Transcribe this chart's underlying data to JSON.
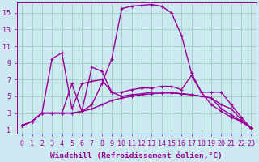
{
  "background_color": "#cce8f0",
  "grid_color": "#a0ccc0",
  "line_color": "#990099",
  "markersize": 2.8,
  "linewidth": 1.0,
  "xlabel": "Windchill (Refroidissement éolien,°C)",
  "xlabel_fontsize": 6.8,
  "tick_fontsize": 6.0,
  "xlim": [
    -0.5,
    23.5
  ],
  "ylim": [
    0.5,
    16.2
  ],
  "xticks": [
    0,
    1,
    2,
    3,
    4,
    5,
    6,
    7,
    8,
    9,
    10,
    11,
    12,
    13,
    14,
    15,
    16,
    17,
    18,
    19,
    20,
    21,
    22,
    23
  ],
  "yticks": [
    1,
    3,
    5,
    7,
    9,
    11,
    13,
    15
  ],
  "series": [
    [
      1.5,
      2.0,
      3.0,
      3.0,
      3.0,
      3.0,
      3.2,
      3.5,
      4.0,
      4.5,
      4.8,
      5.0,
      5.2,
      5.3,
      5.4,
      5.4,
      5.3,
      5.2,
      5.0,
      4.8,
      4.0,
      3.5,
      2.2,
      1.2
    ],
    [
      1.5,
      2.0,
      3.0,
      3.0,
      3.0,
      3.0,
      3.2,
      4.0,
      6.5,
      9.5,
      15.5,
      15.8,
      15.9,
      16.0,
      15.8,
      15.0,
      12.3,
      7.8,
      5.5,
      4.0,
      3.2,
      2.5,
      2.0,
      1.2
    ],
    [
      1.5,
      2.0,
      3.0,
      9.5,
      10.2,
      3.5,
      6.5,
      6.8,
      7.0,
      5.5,
      5.0,
      5.2,
      5.3,
      5.5,
      5.5,
      5.5,
      5.3,
      5.2,
      5.0,
      4.8,
      3.5,
      2.8,
      2.0,
      1.2
    ],
    [
      1.5,
      2.0,
      3.0,
      3.0,
      3.0,
      6.5,
      3.2,
      8.5,
      8.0,
      5.5,
      5.5,
      5.8,
      6.0,
      6.0,
      6.2,
      6.2,
      5.8,
      7.5,
      5.5,
      5.5,
      5.5,
      4.0,
      2.5,
      1.2
    ]
  ]
}
